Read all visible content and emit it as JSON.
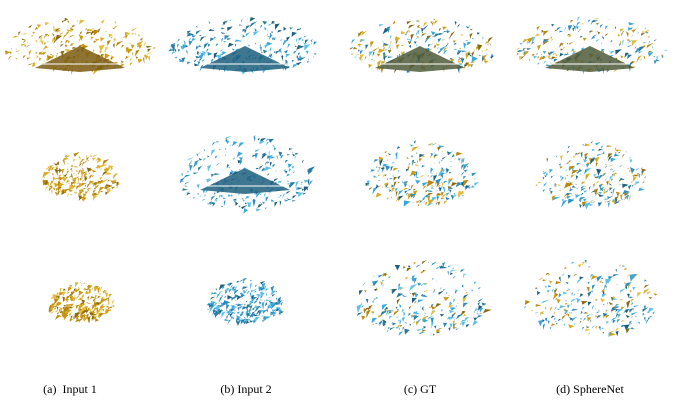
{
  "captions": [
    "(a)  Input 1",
    "(b) Input 2",
    "(c) GT",
    "(d) SphereNet"
  ]
}
